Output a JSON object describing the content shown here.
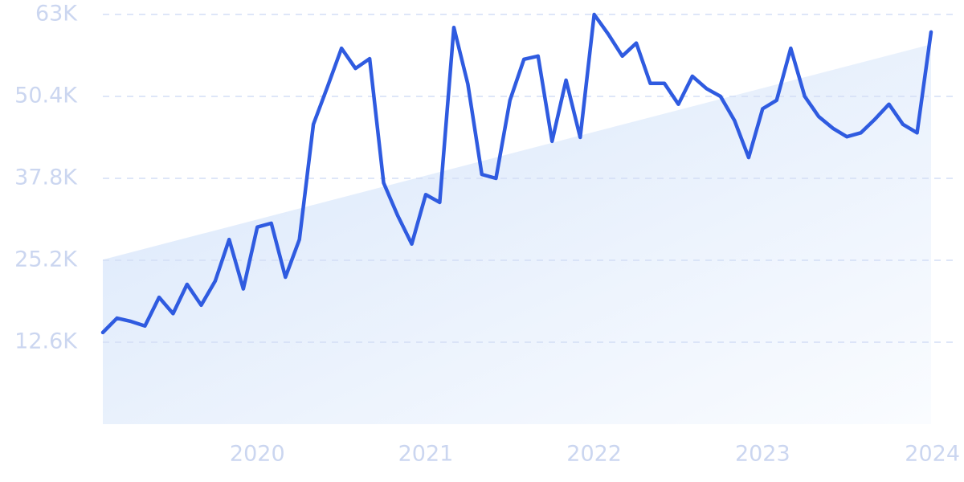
{
  "chart_data": {
    "type": "line",
    "x": [
      2019.083,
      2019.167,
      2019.25,
      2019.333,
      2019.417,
      2019.5,
      2019.583,
      2019.667,
      2019.75,
      2019.833,
      2019.917,
      2020,
      2020.083,
      2020.167,
      2020.25,
      2020.333,
      2020.417,
      2020.5,
      2020.583,
      2020.667,
      2020.75,
      2020.833,
      2020.917,
      2021,
      2021.083,
      2021.167,
      2021.25,
      2021.333,
      2021.417,
      2021.5,
      2021.583,
      2021.667,
      2021.75,
      2021.833,
      2021.917,
      2022,
      2022.083,
      2022.167,
      2022.25,
      2022.333,
      2022.417,
      2022.5,
      2022.583,
      2022.667,
      2022.75,
      2022.833,
      2022.917,
      2023,
      2023.083,
      2023.167,
      2023.25,
      2023.333,
      2023.417,
      2023.5,
      2023.583,
      2023.667,
      2023.75,
      2023.833,
      2023.917,
      2024
    ],
    "series": [
      {
        "color": "#2f5be0",
        "values": [
          14100,
          16300,
          15800,
          15100,
          19500,
          17000,
          21500,
          18300,
          22000,
          28400,
          20800,
          30300,
          30900,
          22600,
          28400,
          46100,
          51900,
          57800,
          54700,
          56200,
          37100,
          32100,
          27700,
          35300,
          34100,
          61000,
          52300,
          38400,
          37800,
          49800,
          56100,
          56600,
          43500,
          52900,
          44100,
          63000,
          60000,
          56600,
          58600,
          52400,
          52400,
          49200,
          53500,
          51600,
          50400,
          46700,
          41000,
          48500,
          49800,
          57800,
          50400,
          47300,
          45500,
          44200,
          44800,
          46900,
          49200,
          46100,
          44800,
          60300
        ]
      }
    ],
    "trend_values": [
      25300,
      58400
    ],
    "xlim": [
      2019.083,
      2024
    ],
    "xticks": [
      2020,
      2021,
      2022,
      2023,
      2024
    ],
    "ylim": [
      0,
      63000
    ],
    "yticks": [
      {
        "value": 12600,
        "label": "12.6K"
      },
      {
        "value": 25200,
        "label": "25.2K"
      },
      {
        "value": 37800,
        "label": "37.8K"
      },
      {
        "value": 50400,
        "label": "50.4K"
      },
      {
        "value": 63000,
        "label": "63K"
      }
    ],
    "grid": true
  }
}
